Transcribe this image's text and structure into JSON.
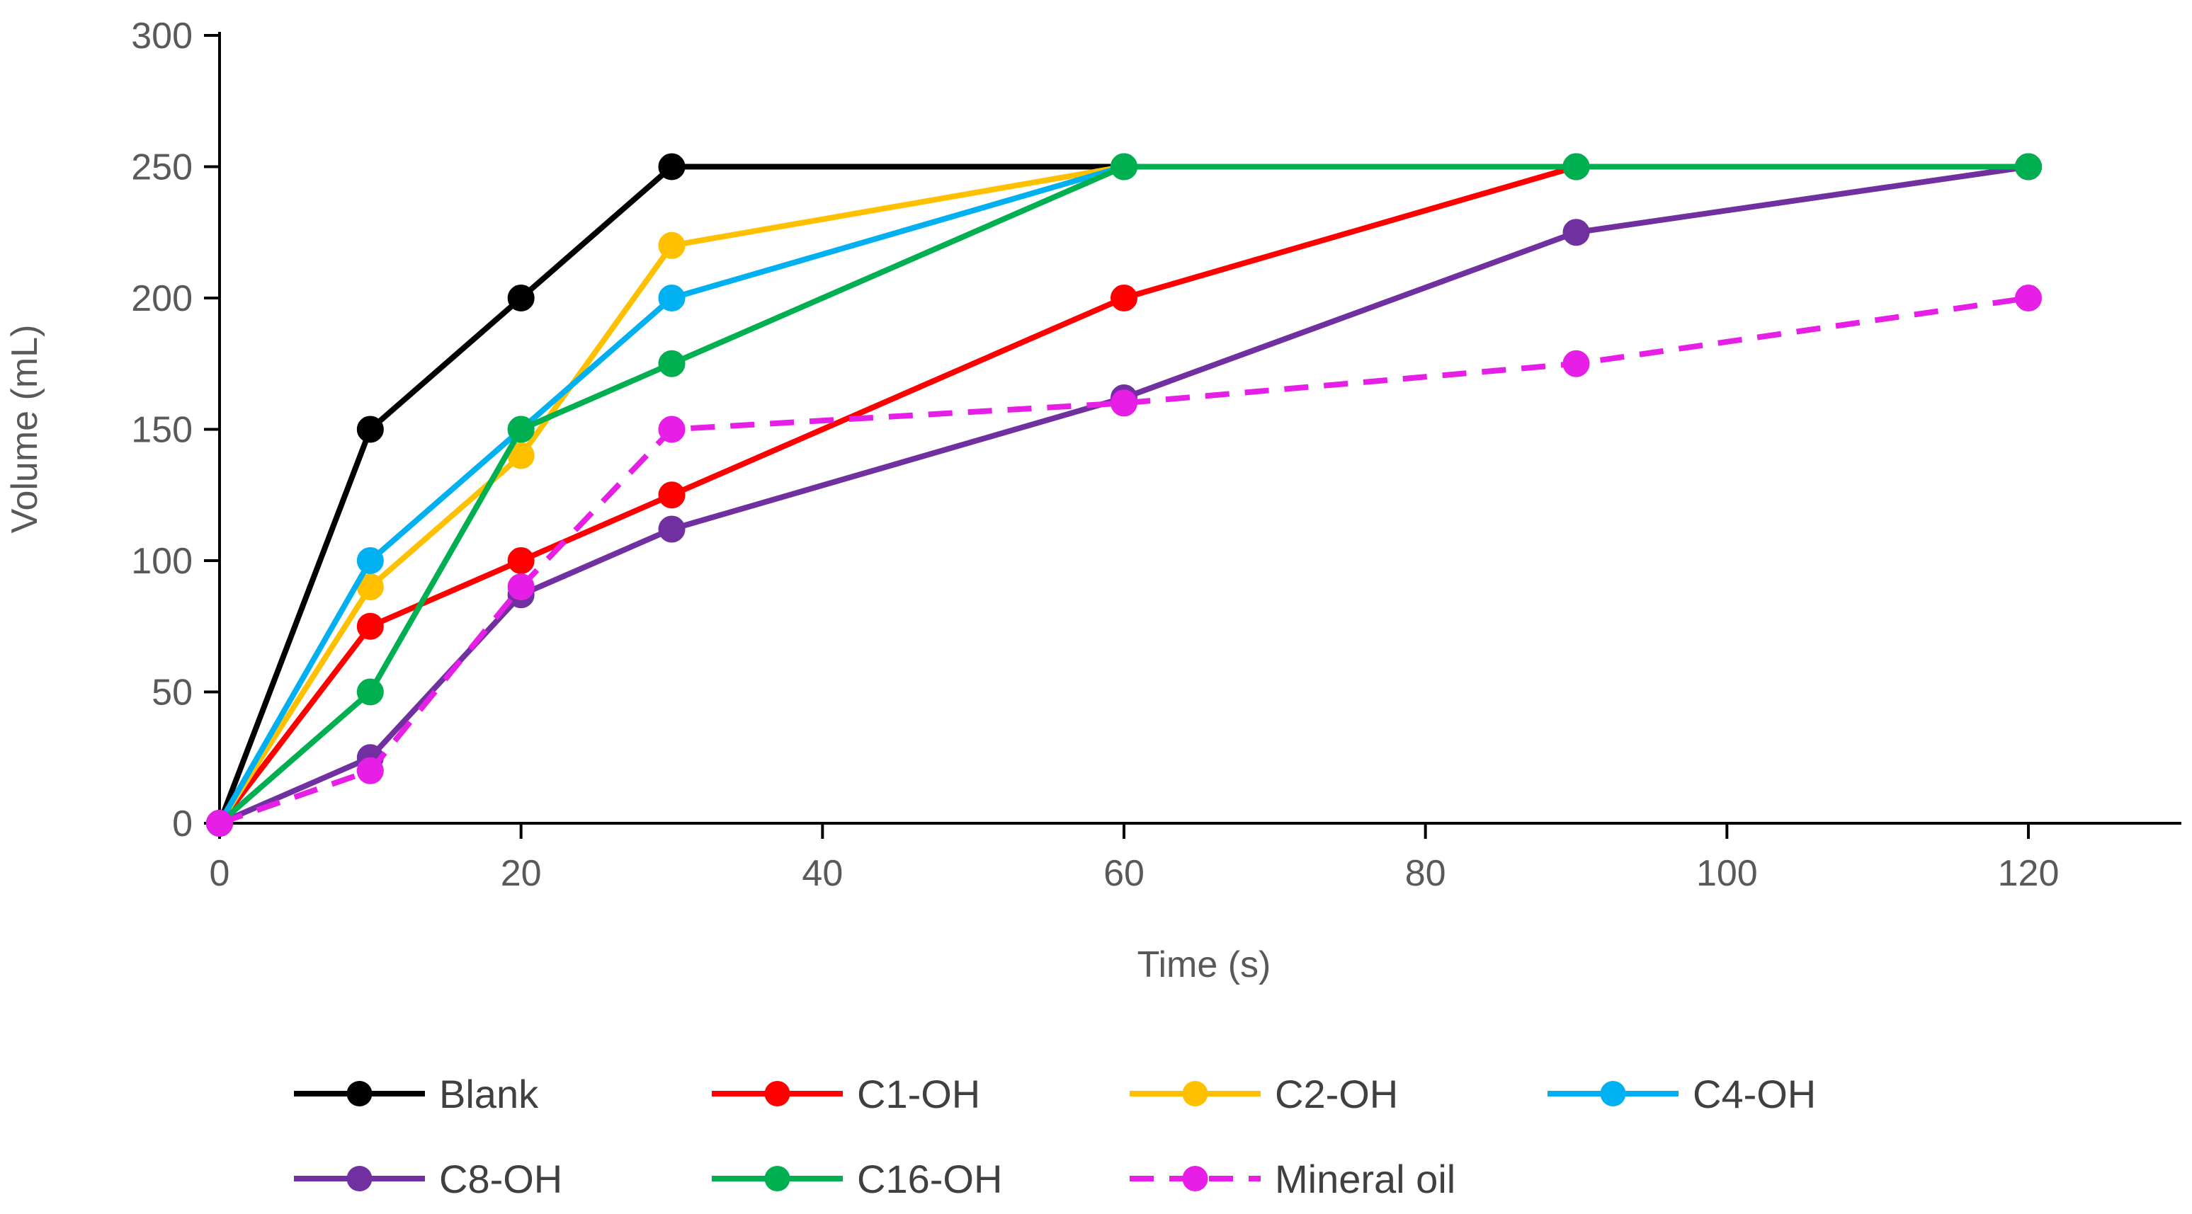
{
  "chart_data": {
    "type": "line",
    "title": "",
    "xlabel": "Time (s)",
    "ylabel": "Volume (mL)",
    "xlim": [
      0,
      130
    ],
    "ylim": [
      0,
      300
    ],
    "x_ticks": [
      0,
      20,
      40,
      60,
      80,
      100,
      120
    ],
    "y_ticks": [
      0,
      50,
      100,
      150,
      200,
      250,
      300
    ],
    "grid": false,
    "legend_position": "bottom",
    "series": [
      {
        "name": "Blank",
        "color": "#000000",
        "dash": false,
        "x": [
          0,
          10,
          20,
          30,
          60,
          90,
          120
        ],
        "y": [
          0,
          150,
          200,
          250,
          250,
          250,
          250
        ]
      },
      {
        "name": "C1-OH",
        "color": "#ff0000",
        "dash": false,
        "x": [
          0,
          10,
          20,
          30,
          60,
          90,
          120
        ],
        "y": [
          0,
          75,
          100,
          125,
          200,
          250,
          250
        ]
      },
      {
        "name": "C2-OH",
        "color": "#ffc000",
        "dash": false,
        "x": [
          0,
          10,
          20,
          30,
          60,
          90,
          120
        ],
        "y": [
          0,
          90,
          140,
          220,
          250,
          250,
          250
        ]
      },
      {
        "name": "C4-OH",
        "color": "#00b0f0",
        "dash": false,
        "x": [
          0,
          10,
          20,
          30,
          60,
          90,
          120
        ],
        "y": [
          0,
          100,
          150,
          200,
          250,
          250,
          250
        ]
      },
      {
        "name": "C8-OH",
        "color": "#7030a0",
        "dash": false,
        "x": [
          0,
          10,
          20,
          30,
          60,
          90,
          120
        ],
        "y": [
          0,
          25,
          87,
          112,
          162,
          225,
          250
        ]
      },
      {
        "name": "C16-OH",
        "color": "#00b050",
        "dash": false,
        "x": [
          0,
          10,
          20,
          30,
          60,
          90,
          120
        ],
        "y": [
          0,
          50,
          150,
          175,
          250,
          250,
          250
        ]
      },
      {
        "name": "Mineral oil",
        "color": "#e61ee6",
        "dash": true,
        "x": [
          0,
          10,
          20,
          30,
          60,
          90,
          120
        ],
        "y": [
          0,
          20,
          90,
          150,
          160,
          175,
          200
        ]
      }
    ]
  }
}
